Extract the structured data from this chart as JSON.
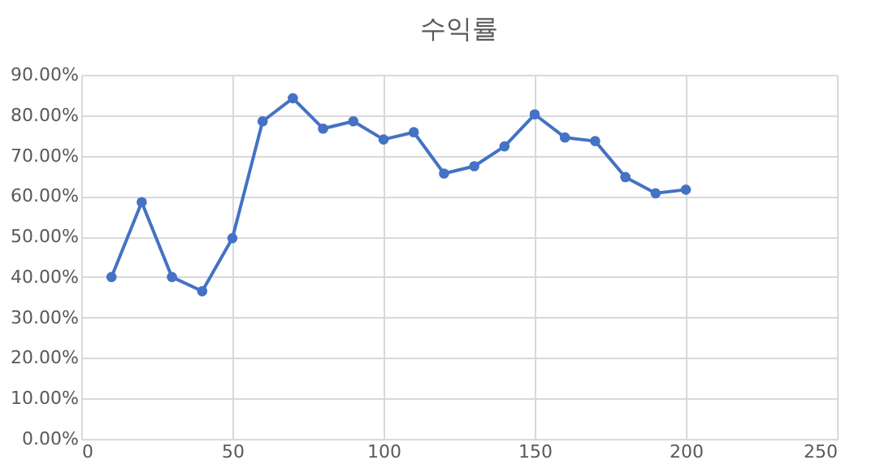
{
  "chart_data": {
    "type": "line",
    "title": "수익률",
    "x": [
      10,
      20,
      30,
      40,
      50,
      60,
      70,
      80,
      90,
      100,
      110,
      120,
      130,
      140,
      150,
      160,
      170,
      180,
      190,
      200
    ],
    "series": [
      {
        "color": "#4472c4",
        "values": [
          40,
          58.5,
          40,
          36.5,
          49.6,
          78.5,
          84.2,
          76.7,
          78.5,
          74,
          75.8,
          65.6,
          67.4,
          72.3,
          80.2,
          74.5,
          73.6,
          64.7,
          60.7,
          61.6
        ]
      }
    ],
    "xlim": [
      0,
      250
    ],
    "xticks": [
      0,
      50,
      100,
      150,
      200,
      250
    ],
    "ylim": [
      0,
      90
    ],
    "yticks": [
      {
        "value": 0,
        "label": "0.00%"
      },
      {
        "value": 10,
        "label": "10.00%"
      },
      {
        "value": 20,
        "label": "20.00%"
      },
      {
        "value": 30,
        "label": "30.00%"
      },
      {
        "value": 40,
        "label": "40.00%"
      },
      {
        "value": 50,
        "label": "50.00%"
      },
      {
        "value": 60,
        "label": "60.00%"
      },
      {
        "value": 70,
        "label": "70.00%"
      },
      {
        "value": 80,
        "label": "80.00%"
      },
      {
        "value": 90,
        "label": "90.00%"
      }
    ],
    "grid": true,
    "marker": "circle",
    "line_style": "solid"
  }
}
